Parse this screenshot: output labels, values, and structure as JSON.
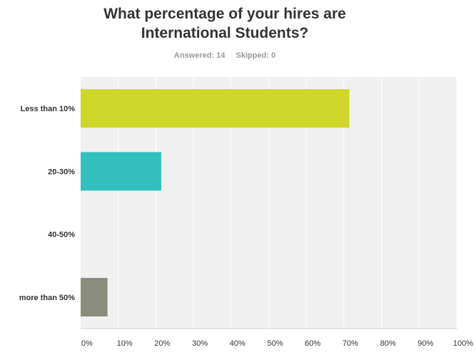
{
  "chart_data": {
    "type": "bar",
    "orientation": "horizontal",
    "title_lines": [
      "What percentage of your hires are",
      "International Students?"
    ],
    "answered_label": "Answered: 14",
    "skipped_label": "Skipped: 0",
    "categories": [
      "Less than 10%",
      "20-30%",
      "40-50%",
      "more than 50%"
    ],
    "values": [
      71.43,
      21.43,
      0,
      7.14
    ],
    "colors": [
      "#cfd62a",
      "#34bfbf",
      "#e59a2f",
      "#8c8c7c"
    ],
    "xlim": [
      0,
      100
    ],
    "x_ticks": [
      "0%",
      "10%",
      "20%",
      "30%",
      "40%",
      "50%",
      "60%",
      "70%",
      "80%",
      "90%",
      "100%"
    ],
    "grid": true
  }
}
